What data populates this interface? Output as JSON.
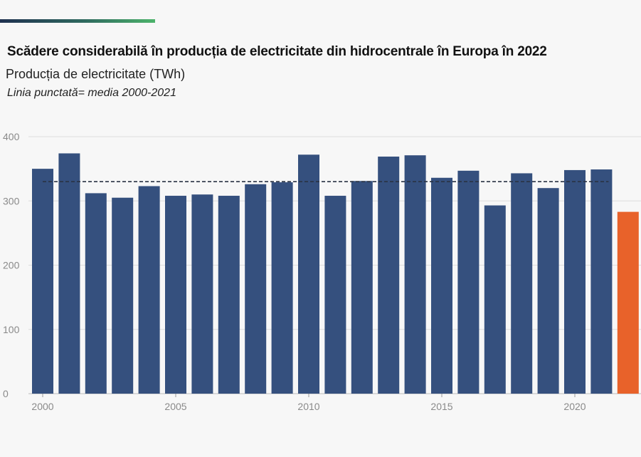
{
  "header": {
    "accent_bar": "gradient"
  },
  "chart_data": {
    "type": "bar",
    "title": "Scădere considerabilă în producția de electricitate din hidrocentrale în Europa în 2022",
    "subtitle": "Producția de electricitate (TWh)",
    "note": "Linia punctată= media 2000-2021",
    "xlabel": "",
    "ylabel": "",
    "ylim": [
      0,
      400
    ],
    "yticks": [
      0,
      100,
      200,
      300,
      400
    ],
    "xtick_labels": [
      "2000",
      "2005",
      "2010",
      "2015",
      "2020"
    ],
    "grid": true,
    "categories": [
      2000,
      2001,
      2002,
      2003,
      2004,
      2005,
      2006,
      2007,
      2008,
      2009,
      2010,
      2011,
      2012,
      2013,
      2014,
      2015,
      2016,
      2017,
      2018,
      2019,
      2020,
      2021,
      2022
    ],
    "values": [
      350,
      374,
      312,
      305,
      323,
      308,
      310,
      308,
      326,
      329,
      372,
      308,
      331,
      369,
      371,
      336,
      347,
      293,
      343,
      320,
      348,
      349,
      283
    ],
    "average_line": {
      "value": 330,
      "from": 2000,
      "to": 2021,
      "style": "dashed"
    },
    "colors": {
      "default": "#35507e",
      "highlight": "#e8622a",
      "average": "#2a3344"
    },
    "highlight_category": 2022
  }
}
